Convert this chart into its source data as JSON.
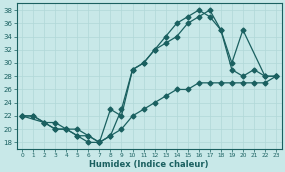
{
  "xlabel": "Humidex (Indice chaleur)",
  "xlim": [
    -0.5,
    23.5
  ],
  "ylim": [
    17,
    39
  ],
  "yticks": [
    18,
    20,
    22,
    24,
    26,
    28,
    30,
    32,
    34,
    36,
    38
  ],
  "xticks": [
    0,
    1,
    2,
    3,
    4,
    5,
    6,
    7,
    8,
    9,
    10,
    11,
    12,
    13,
    14,
    15,
    16,
    17,
    18,
    19,
    20,
    21,
    22,
    23
  ],
  "bg_color": "#c8e8e8",
  "grid_color": "#b0d8d8",
  "line_color": "#1a6060",
  "curve1_x": [
    0,
    1,
    2,
    3,
    4,
    5,
    6,
    7,
    8,
    9,
    10,
    11,
    12,
    13,
    14,
    15,
    16,
    17,
    18,
    19,
    20,
    21,
    22,
    23
  ],
  "curve1_y": [
    22,
    22,
    21,
    20,
    20,
    19,
    18,
    18,
    19,
    23,
    29,
    30,
    32,
    34,
    36,
    37,
    38,
    37,
    35,
    29,
    28,
    29,
    28,
    28
  ],
  "curve2_x": [
    0,
    2,
    3,
    4,
    5,
    6,
    7,
    8,
    9,
    10,
    11,
    12,
    13,
    14,
    15,
    16,
    17,
    18,
    19,
    20,
    22,
    23
  ],
  "curve2_y": [
    22,
    21,
    20,
    20,
    19,
    19,
    18,
    23,
    22,
    29,
    30,
    32,
    33,
    34,
    36,
    37,
    38,
    35,
    30,
    35,
    28,
    28
  ],
  "curve3_x": [
    0,
    1,
    2,
    3,
    4,
    5,
    6,
    7,
    8,
    9,
    10,
    11,
    12,
    13,
    14,
    15,
    16,
    17,
    18,
    19,
    20,
    21,
    22,
    23
  ],
  "curve3_y": [
    22,
    22,
    21,
    21,
    20,
    20,
    19,
    18,
    19,
    20,
    22,
    23,
    24,
    25,
    26,
    26,
    27,
    27,
    27,
    27,
    27,
    27,
    27,
    28
  ]
}
